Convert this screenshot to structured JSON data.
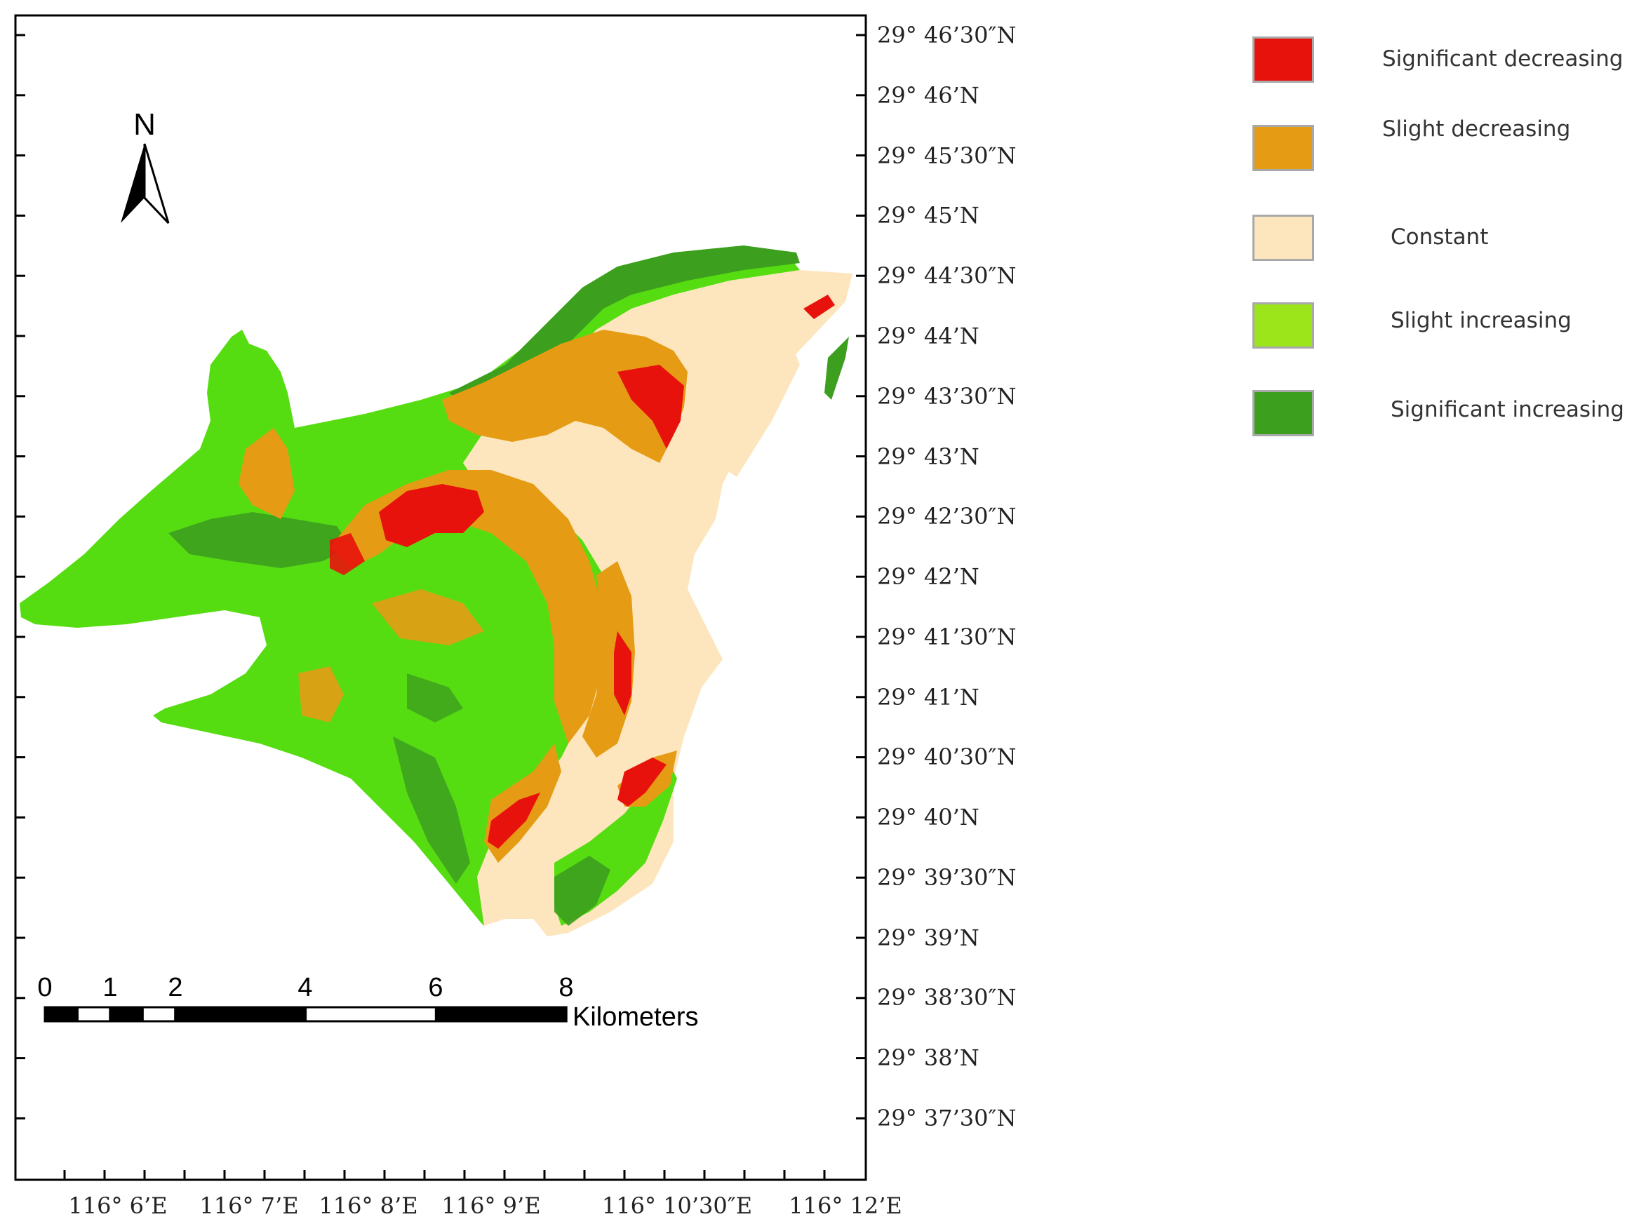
{
  "map": {
    "north_label": "N",
    "lat_labels": [
      "29° 46’30″N",
      "29° 46’N",
      "29° 45’30″N",
      "29° 45’N",
      "29° 44’30″N",
      "29° 44’N",
      "29° 43’30″N",
      "29° 43’N",
      "29° 42’30″N",
      "29° 42’N",
      "29° 41’30″N",
      "29° 41’N",
      "29° 40’30″N",
      "29° 40’N",
      "29° 39’30″N",
      "29° 39’N",
      "29° 38’30″N",
      "29° 38’N",
      "29° 37’30″N"
    ],
    "lon_labels": [
      "116° 6’E",
      "116° 7’E",
      "116° 8’E",
      "116° 9’E",
      "116° 10’30″E",
      "116° 12’E"
    ],
    "scale_bar": {
      "ticks": [
        "0",
        "1",
        "2",
        "4",
        "6",
        "8"
      ],
      "unit": "Kilometers"
    }
  },
  "legend": {
    "items": [
      {
        "label": "Significant decreasing",
        "color": "#e8120c"
      },
      {
        "label": "Slight decreasing",
        "color": "#e59b14"
      },
      {
        "label": "Constant",
        "color": "#fde6bd"
      },
      {
        "label": "Slight increasing",
        "color": "#9be51a"
      },
      {
        "label": "Significant increasing",
        "color": "#3c9f1e"
      }
    ]
  },
  "colors": {
    "main_green": "#56dd12",
    "dark_green": "#3c9f1e",
    "orange": "#e59b14",
    "red": "#e8120c",
    "cream": "#fde6bd"
  }
}
